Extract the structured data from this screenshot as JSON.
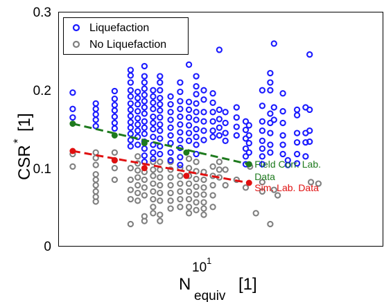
{
  "chart_data": {
    "type": "scatter",
    "x_scale": "log",
    "xlim": [
      3.5,
      80
    ],
    "ylim": [
      0,
      0.3
    ],
    "grid": false,
    "legend_position": "top-left",
    "xlabel": "N",
    "xlabel_subscript": "equiv",
    "xlabel_unit": "[1]",
    "ylabel": "CSR",
    "ylabel_superscript": "*",
    "ylabel_unit": "[1]",
    "x_tick_label": {
      "base": "10",
      "exp": "1"
    },
    "y_ticks": [
      0,
      0.1,
      0.2,
      0.3
    ],
    "y_tick_labels": [
      "0",
      "0.1",
      "0.2",
      "0.3"
    ],
    "series": [
      {
        "name": "Liquefaction",
        "color": "#1a1aff",
        "marker": "open-circle",
        "points": [
          [
            4,
            0.197
          ],
          [
            4,
            0.176
          ],
          [
            4,
            0.165
          ],
          [
            5,
            0.183
          ],
          [
            5,
            0.176
          ],
          [
            5,
            0.169
          ],
          [
            5,
            0.162
          ],
          [
            5,
            0.154
          ],
          [
            6,
            0.199
          ],
          [
            6,
            0.189
          ],
          [
            6,
            0.181
          ],
          [
            6,
            0.174
          ],
          [
            6,
            0.166
          ],
          [
            6,
            0.158
          ],
          [
            6,
            0.151
          ],
          [
            7,
            0.226
          ],
          [
            7,
            0.219
          ],
          [
            7,
            0.21
          ],
          [
            7,
            0.2
          ],
          [
            7,
            0.192
          ],
          [
            7,
            0.183
          ],
          [
            7,
            0.175
          ],
          [
            7,
            0.167
          ],
          [
            7,
            0.159
          ],
          [
            7,
            0.152
          ],
          [
            7,
            0.144
          ],
          [
            7,
            0.136
          ],
          [
            7,
            0.128
          ],
          [
            7.5,
            0.198
          ],
          [
            7.5,
            0.19
          ],
          [
            7.5,
            0.182
          ],
          [
            7.5,
            0.173
          ],
          [
            7.5,
            0.164
          ],
          [
            7.5,
            0.156
          ],
          [
            7.5,
            0.148
          ],
          [
            7.5,
            0.14
          ],
          [
            7.5,
            0.13
          ],
          [
            8,
            0.231
          ],
          [
            8,
            0.218
          ],
          [
            8,
            0.21
          ],
          [
            8,
            0.202
          ],
          [
            8,
            0.194
          ],
          [
            8,
            0.186
          ],
          [
            8,
            0.178
          ],
          [
            8,
            0.17
          ],
          [
            8,
            0.16
          ],
          [
            8,
            0.152
          ],
          [
            8,
            0.144
          ],
          [
            8,
            0.134
          ],
          [
            8,
            0.125
          ],
          [
            8,
            0.116
          ],
          [
            8,
            0.108
          ],
          [
            8.7,
            0.2
          ],
          [
            8.7,
            0.192
          ],
          [
            8.7,
            0.184
          ],
          [
            8.7,
            0.176
          ],
          [
            8.7,
            0.166
          ],
          [
            8.7,
            0.158
          ],
          [
            8.7,
            0.15
          ],
          [
            8.7,
            0.14
          ],
          [
            8.7,
            0.13
          ],
          [
            8.7,
            0.12
          ],
          [
            8.7,
            0.112
          ],
          [
            9.3,
            0.218
          ],
          [
            9.3,
            0.21
          ],
          [
            9.3,
            0.2
          ],
          [
            9.3,
            0.19
          ],
          [
            9.3,
            0.182
          ],
          [
            9.3,
            0.174
          ],
          [
            9.3,
            0.165
          ],
          [
            9.3,
            0.156
          ],
          [
            9.3,
            0.148
          ],
          [
            9.3,
            0.138
          ],
          [
            9.3,
            0.128
          ],
          [
            9.3,
            0.118
          ],
          [
            10.3,
            0.192
          ],
          [
            10.3,
            0.182
          ],
          [
            10.3,
            0.172
          ],
          [
            10.3,
            0.162
          ],
          [
            10.3,
            0.152
          ],
          [
            10.3,
            0.142
          ],
          [
            10.3,
            0.132
          ],
          [
            10.3,
            0.12
          ],
          [
            10.3,
            0.11
          ],
          [
            11.3,
            0.21
          ],
          [
            11.3,
            0.198
          ],
          [
            11.3,
            0.186
          ],
          [
            11.3,
            0.176
          ],
          [
            11.3,
            0.166
          ],
          [
            11.3,
            0.156
          ],
          [
            11.3,
            0.146
          ],
          [
            11.3,
            0.136
          ],
          [
            11.3,
            0.126
          ],
          [
            11.3,
            0.114
          ],
          [
            11.3,
            0.104
          ],
          [
            12.3,
            0.233
          ],
          [
            12.3,
            0.185
          ],
          [
            12.3,
            0.175
          ],
          [
            12.3,
            0.165
          ],
          [
            12.3,
            0.155
          ],
          [
            12.3,
            0.145
          ],
          [
            12.3,
            0.135
          ],
          [
            13.2,
            0.218
          ],
          [
            13.2,
            0.205
          ],
          [
            13.2,
            0.195
          ],
          [
            13.2,
            0.183
          ],
          [
            13.2,
            0.172
          ],
          [
            13.2,
            0.162
          ],
          [
            13.2,
            0.15
          ],
          [
            13.2,
            0.14
          ],
          [
            13.2,
            0.13
          ],
          [
            13.2,
            0.118
          ],
          [
            14.2,
            0.2
          ],
          [
            14.2,
            0.188
          ],
          [
            14.2,
            0.172
          ],
          [
            14.2,
            0.16
          ],
          [
            14.2,
            0.148
          ],
          [
            14.2,
            0.136
          ],
          [
            15.5,
            0.196
          ],
          [
            15.5,
            0.184
          ],
          [
            15.5,
            0.172
          ],
          [
            15.5,
            0.16
          ],
          [
            15.5,
            0.148
          ],
          [
            15.5,
            0.14
          ],
          [
            16.5,
            0.252
          ],
          [
            16.5,
            0.175
          ],
          [
            16.5,
            0.163
          ],
          [
            16.5,
            0.152
          ],
          [
            16.5,
            0.142
          ],
          [
            17.5,
            0.172
          ],
          [
            17.5,
            0.158
          ],
          [
            17.5,
            0.145
          ],
          [
            17.5,
            0.135
          ],
          [
            19.5,
            0.178
          ],
          [
            19.5,
            0.165
          ],
          [
            19.5,
            0.153
          ],
          [
            19.5,
            0.142
          ],
          [
            21.3,
            0.16
          ],
          [
            21.3,
            0.149
          ],
          [
            21.3,
            0.138
          ],
          [
            21.3,
            0.125
          ],
          [
            21.3,
            0.115
          ],
          [
            21.3,
            0.105
          ],
          [
            22,
            0.155
          ],
          [
            22,
            0.142
          ],
          [
            22,
            0.132
          ],
          [
            22,
            0.12
          ],
          [
            25,
            0.2
          ],
          [
            25,
            0.18
          ],
          [
            25,
            0.16
          ],
          [
            25,
            0.148
          ],
          [
            25,
            0.135
          ],
          [
            25,
            0.125
          ],
          [
            25,
            0.115
          ],
          [
            25,
            0.105
          ],
          [
            27,
            0.222
          ],
          [
            27,
            0.21
          ],
          [
            27,
            0.2
          ],
          [
            27,
            0.17
          ],
          [
            27,
            0.158
          ],
          [
            27,
            0.145
          ],
          [
            27,
            0.13
          ],
          [
            27,
            0.12
          ],
          [
            28,
            0.26
          ],
          [
            28,
            0.178
          ],
          [
            28,
            0.162
          ],
          [
            30.5,
            0.196
          ],
          [
            30.5,
            0.173
          ],
          [
            30.5,
            0.158
          ],
          [
            30.5,
            0.142
          ],
          [
            30.5,
            0.13
          ],
          [
            30.5,
            0.118
          ],
          [
            32,
            0.11
          ],
          [
            32,
            0.104
          ],
          [
            35,
            0.175
          ],
          [
            35,
            0.168
          ],
          [
            35,
            0.145
          ],
          [
            35,
            0.133
          ],
          [
            35,
            0.118
          ],
          [
            35,
            0.106
          ],
          [
            38,
            0.178
          ],
          [
            38,
            0.145
          ],
          [
            38,
            0.133
          ],
          [
            38,
            0.115
          ],
          [
            39.5,
            0.246
          ],
          [
            39.5,
            0.175
          ],
          [
            39.5,
            0.148
          ],
          [
            39.5,
            0.134
          ]
        ]
      },
      {
        "name": "No Liquefaction",
        "color": "#808080",
        "marker": "open-circle",
        "points": [
          [
            4,
            0.118
          ],
          [
            4,
            0.102
          ],
          [
            5,
            0.12
          ],
          [
            5,
            0.113
          ],
          [
            5,
            0.104
          ],
          [
            5,
            0.092
          ],
          [
            5,
            0.085
          ],
          [
            5,
            0.078
          ],
          [
            5,
            0.07
          ],
          [
            5,
            0.063
          ],
          [
            5,
            0.057
          ],
          [
            6,
            0.12
          ],
          [
            6,
            0.11
          ],
          [
            6,
            0.1
          ],
          [
            6,
            0.085
          ],
          [
            7,
            0.1
          ],
          [
            7,
            0.085
          ],
          [
            7,
            0.072
          ],
          [
            7,
            0.06
          ],
          [
            7,
            0.028
          ],
          [
            7.5,
            0.115
          ],
          [
            7.5,
            0.106
          ],
          [
            7.5,
            0.097
          ],
          [
            7.5,
            0.088
          ],
          [
            7.5,
            0.078
          ],
          [
            7.5,
            0.068
          ],
          [
            7.5,
            0.058
          ],
          [
            8,
            0.095
          ],
          [
            8,
            0.085
          ],
          [
            8,
            0.075
          ],
          [
            8,
            0.065
          ],
          [
            8,
            0.038
          ],
          [
            8,
            0.032
          ],
          [
            8.7,
            0.108
          ],
          [
            8.7,
            0.098
          ],
          [
            8.7,
            0.09
          ],
          [
            8.7,
            0.08
          ],
          [
            8.7,
            0.07
          ],
          [
            8.7,
            0.06
          ],
          [
            8.7,
            0.05
          ],
          [
            8.7,
            0.042
          ],
          [
            9.3,
            0.108
          ],
          [
            9.3,
            0.098
          ],
          [
            9.3,
            0.088
          ],
          [
            9.3,
            0.078
          ],
          [
            9.3,
            0.068
          ],
          [
            9.3,
            0.058
          ],
          [
            9.3,
            0.04
          ],
          [
            9.3,
            0.032
          ],
          [
            10.3,
            0.108
          ],
          [
            10.3,
            0.098
          ],
          [
            10.3,
            0.088
          ],
          [
            10.3,
            0.078
          ],
          [
            10.3,
            0.068
          ],
          [
            10.3,
            0.058
          ],
          [
            10.3,
            0.048
          ],
          [
            11.3,
            0.1
          ],
          [
            11.3,
            0.09
          ],
          [
            11.3,
            0.08
          ],
          [
            11.3,
            0.07
          ],
          [
            11.3,
            0.06
          ],
          [
            11.3,
            0.05
          ],
          [
            12.3,
            0.112
          ],
          [
            12.3,
            0.1
          ],
          [
            12.3,
            0.09
          ],
          [
            12.3,
            0.08
          ],
          [
            12.3,
            0.07
          ],
          [
            12.3,
            0.06
          ],
          [
            12.3,
            0.05
          ],
          [
            12.3,
            0.042
          ],
          [
            13.2,
            0.108
          ],
          [
            13.2,
            0.096
          ],
          [
            13.2,
            0.086
          ],
          [
            13.2,
            0.076
          ],
          [
            13.2,
            0.066
          ],
          [
            13.2,
            0.056
          ],
          [
            13.2,
            0.046
          ],
          [
            14.2,
            0.095
          ],
          [
            14.2,
            0.085
          ],
          [
            14.2,
            0.075
          ],
          [
            14.2,
            0.066
          ],
          [
            14.2,
            0.056
          ],
          [
            14.2,
            0.048
          ],
          [
            14.2,
            0.04
          ],
          [
            15.5,
            0.102
          ],
          [
            15.5,
            0.09
          ],
          [
            15.5,
            0.078
          ],
          [
            15.5,
            0.065
          ],
          [
            15.5,
            0.05
          ],
          [
            16.5,
            0.108
          ],
          [
            16.5,
            0.098
          ],
          [
            16.5,
            0.088
          ],
          [
            17.5,
            0.098
          ],
          [
            17.5,
            0.078
          ],
          [
            19.5,
            0.085
          ],
          [
            21.3,
            0.075
          ],
          [
            22.2,
            0.102
          ],
          [
            23.5,
            0.042
          ],
          [
            25,
            0.082
          ],
          [
            25,
            0.07
          ],
          [
            27,
            0.028
          ],
          [
            28,
            0.072
          ],
          [
            29,
            0.065
          ],
          [
            40,
            0.082
          ],
          [
            43,
            0.08
          ]
        ]
      }
    ],
    "fit_lines": [
      {
        "label": "Field Corr. Lab. Data",
        "color": "#1e7a1e",
        "x": [
          4,
          22
        ],
        "y": [
          0.157,
          0.105
        ],
        "markers": [
          [
            4,
            0.157
          ],
          [
            6,
            0.142
          ],
          [
            8,
            0.132
          ],
          [
            12,
            0.12
          ],
          [
            22,
            0.105
          ]
        ]
      },
      {
        "label": "Sim. Lab. Data",
        "color": "#e01010",
        "x": [
          4,
          22
        ],
        "y": [
          0.122,
          0.081
        ],
        "markers": [
          [
            4,
            0.122
          ],
          [
            6,
            0.11
          ],
          [
            8,
            0.1
          ],
          [
            12,
            0.09
          ],
          [
            22,
            0.081
          ]
        ]
      }
    ],
    "annotations": [
      {
        "text": "Field Corr. Lab.",
        "x": 22,
        "y": 0.105,
        "color": "#1e7a1e"
      },
      {
        "text": "Data",
        "x": 22,
        "y": 0.089,
        "color": "#1e7a1e"
      },
      {
        "text": "Sim. Lab. Data",
        "x": 22,
        "y": 0.075,
        "color": "#e01010"
      }
    ]
  }
}
